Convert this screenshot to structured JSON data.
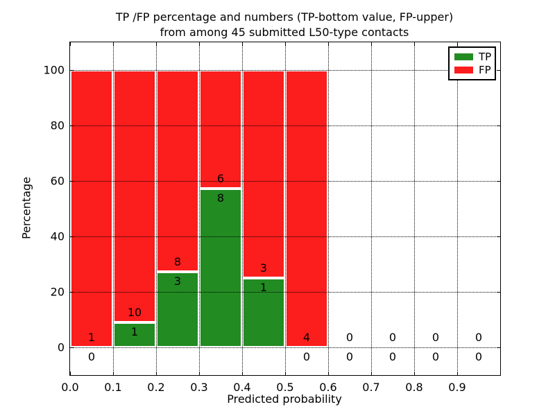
{
  "title": {
    "line1": "TP /FP percentage and numbers (TP-bottom value, FP-upper)",
    "line2": "from among 45 submitted L50-type contacts"
  },
  "legend": {
    "position": "upper right",
    "entries": [
      {
        "label": "TP",
        "color": "#228b22"
      },
      {
        "label": "FP",
        "color": "#fc1d1d"
      }
    ]
  },
  "chart_data": {
    "type": "bar",
    "stacked": true,
    "title": "TP /FP percentage and numbers (TP-bottom value, FP-upper) from among 45 submitted L50-type contacts",
    "xlabel": "Predicted probability",
    "ylabel": "Percentage",
    "xlim": [
      0.0,
      1.0
    ],
    "ylim": [
      -10,
      110
    ],
    "grid": "dotted",
    "x_ticks": [
      "0.0",
      "0.1",
      "0.2",
      "0.3",
      "0.4",
      "0.5",
      "0.6",
      "0.7",
      "0.8",
      "0.9"
    ],
    "y_ticks": [
      "0",
      "20",
      "40",
      "60",
      "80",
      "100"
    ],
    "series": [
      {
        "name": "TP",
        "color": "#228b22"
      },
      {
        "name": "FP",
        "color": "#fc1d1d"
      }
    ],
    "bins": [
      {
        "range": [
          0.0,
          0.1
        ],
        "tp_count": 0,
        "fp_count": 1,
        "tp_pct": 0,
        "fp_pct": 100
      },
      {
        "range": [
          0.1,
          0.2
        ],
        "tp_count": 1,
        "fp_count": 10,
        "tp_pct": 9.09,
        "fp_pct": 90.91
      },
      {
        "range": [
          0.2,
          0.3
        ],
        "tp_count": 3,
        "fp_count": 8,
        "tp_pct": 27.27,
        "fp_pct": 72.73
      },
      {
        "range": [
          0.3,
          0.4
        ],
        "tp_count": 8,
        "fp_count": 6,
        "tp_pct": 57.14,
        "fp_pct": 42.86
      },
      {
        "range": [
          0.4,
          0.5
        ],
        "tp_count": 1,
        "fp_count": 3,
        "tp_pct": 25,
        "fp_pct": 75
      },
      {
        "range": [
          0.5,
          0.6
        ],
        "tp_count": 0,
        "fp_count": 4,
        "tp_pct": 0,
        "fp_pct": 100
      },
      {
        "range": [
          0.6,
          0.7
        ],
        "tp_count": 0,
        "fp_count": 0,
        "tp_pct": 0,
        "fp_pct": 0
      },
      {
        "range": [
          0.7,
          0.8
        ],
        "tp_count": 0,
        "fp_count": 0,
        "tp_pct": 0,
        "fp_pct": 0
      },
      {
        "range": [
          0.8,
          0.9
        ],
        "tp_count": 0,
        "fp_count": 0,
        "tp_pct": 0,
        "fp_pct": 0
      },
      {
        "range": [
          0.9,
          1.0
        ],
        "tp_count": 0,
        "fp_count": 0,
        "tp_pct": 0,
        "fp_pct": 0
      }
    ]
  }
}
